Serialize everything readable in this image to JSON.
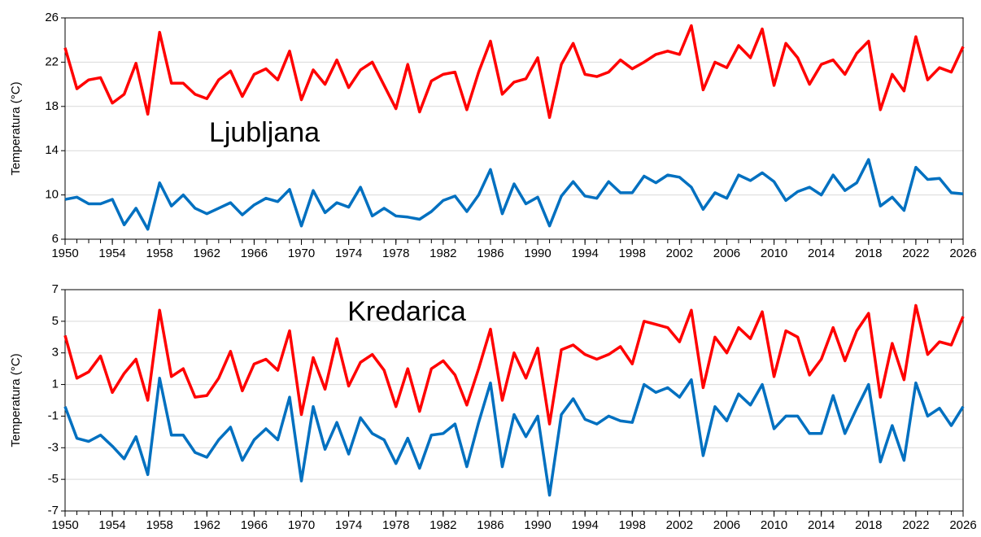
{
  "chart_data": [
    {
      "type": "line",
      "annotation": "Ljubljana",
      "y_label": "Temperatura (°C)",
      "x": [
        1950,
        1951,
        1952,
        1953,
        1954,
        1955,
        1956,
        1957,
        1958,
        1959,
        1960,
        1961,
        1962,
        1963,
        1964,
        1965,
        1966,
        1967,
        1968,
        1969,
        1970,
        1971,
        1972,
        1973,
        1974,
        1975,
        1976,
        1977,
        1978,
        1979,
        1980,
        1981,
        1982,
        1983,
        1984,
        1985,
        1986,
        1987,
        1988,
        1989,
        1990,
        1991,
        1992,
        1993,
        1994,
        1995,
        1996,
        1997,
        1998,
        1999,
        2000,
        2001,
        2002,
        2003,
        2004,
        2005,
        2006,
        2007,
        2008,
        2009,
        2010,
        2011,
        2012,
        2013,
        2014,
        2015,
        2016,
        2017,
        2018,
        2019,
        2020,
        2021,
        2022,
        2023,
        2024,
        2025,
        2026
      ],
      "xlim": [
        1950,
        2026
      ],
      "xticks": [
        1950,
        1954,
        1958,
        1962,
        1966,
        1970,
        1974,
        1978,
        1982,
        1986,
        1990,
        1994,
        1998,
        2002,
        2006,
        2010,
        2014,
        2018,
        2022,
        2026
      ],
      "ylim": [
        6,
        26
      ],
      "yticks": [
        6,
        10,
        14,
        18,
        22,
        26
      ],
      "grid": true,
      "series": [
        {
          "color": "#ff0000",
          "values": [
            23.3,
            19.6,
            20.4,
            20.6,
            18.3,
            19.1,
            21.9,
            17.3,
            24.7,
            20.1,
            20.1,
            19.1,
            18.7,
            20.4,
            21.2,
            18.9,
            20.9,
            21.4,
            20.4,
            23.0,
            18.6,
            21.3,
            20.0,
            22.2,
            19.7,
            21.3,
            22.0,
            19.9,
            17.8,
            21.8,
            17.5,
            20.3,
            20.9,
            21.1,
            17.7,
            21.1,
            23.9,
            19.1,
            20.2,
            20.5,
            22.4,
            17.0,
            21.8,
            23.7,
            20.9,
            20.7,
            21.1,
            22.2,
            21.4,
            22.0,
            22.7,
            23.0,
            22.7,
            25.3,
            19.5,
            22.0,
            21.5,
            23.5,
            22.4,
            25.0,
            19.9,
            23.7,
            22.4,
            20.0,
            21.8,
            22.2,
            20.9,
            22.8,
            23.9,
            17.7,
            20.9,
            19.4,
            24.3,
            20.4,
            21.5,
            21.1,
            23.4
          ]
        },
        {
          "color": "#0070c0",
          "values": [
            9.6,
            9.8,
            9.2,
            9.2,
            9.6,
            7.3,
            8.8,
            6.9,
            11.1,
            9.0,
            10.0,
            8.8,
            8.3,
            8.8,
            9.3,
            8.2,
            9.1,
            9.7,
            9.4,
            10.5,
            7.2,
            10.4,
            8.4,
            9.3,
            8.9,
            10.7,
            8.1,
            8.8,
            8.1,
            8.0,
            7.8,
            8.5,
            9.5,
            9.9,
            8.5,
            10.0,
            12.3,
            8.3,
            11.0,
            9.2,
            9.8,
            7.2,
            9.9,
            11.2,
            9.9,
            9.7,
            11.2,
            10.2,
            10.2,
            11.7,
            11.1,
            11.8,
            11.6,
            10.7,
            8.7,
            10.2,
            9.7,
            11.8,
            11.3,
            12.0,
            11.2,
            9.5,
            10.3,
            10.7,
            10.0,
            11.8,
            10.4,
            11.1,
            13.2,
            9.0,
            9.8,
            8.6,
            12.5,
            11.4,
            11.5,
            10.2,
            10.1
          ]
        }
      ]
    },
    {
      "type": "line",
      "annotation": "Kredarica",
      "y_label": "Temperatura (°C)",
      "x": [
        1950,
        1951,
        1952,
        1953,
        1954,
        1955,
        1956,
        1957,
        1958,
        1959,
        1960,
        1961,
        1962,
        1963,
        1964,
        1965,
        1966,
        1967,
        1968,
        1969,
        1970,
        1971,
        1972,
        1973,
        1974,
        1975,
        1976,
        1977,
        1978,
        1979,
        1980,
        1981,
        1982,
        1983,
        1984,
        1985,
        1986,
        1987,
        1988,
        1989,
        1990,
        1991,
        1992,
        1993,
        1994,
        1995,
        1996,
        1997,
        1998,
        1999,
        2000,
        2001,
        2002,
        2003,
        2004,
        2005,
        2006,
        2007,
        2008,
        2009,
        2010,
        2011,
        2012,
        2013,
        2014,
        2015,
        2016,
        2017,
        2018,
        2019,
        2020,
        2021,
        2022,
        2023,
        2024,
        2025,
        2026
      ],
      "xlim": [
        1950,
        2026
      ],
      "xticks": [
        1950,
        1954,
        1958,
        1962,
        1966,
        1970,
        1974,
        1978,
        1982,
        1986,
        1990,
        1994,
        1998,
        2002,
        2006,
        2010,
        2014,
        2018,
        2022,
        2026
      ],
      "ylim": [
        -7,
        7
      ],
      "yticks": [
        -7,
        -5,
        -3,
        -1,
        1,
        3,
        5,
        7
      ],
      "grid": true,
      "series": [
        {
          "color": "#ff0000",
          "values": [
            4.1,
            1.4,
            1.8,
            2.8,
            0.5,
            1.7,
            2.6,
            0.0,
            5.7,
            1.5,
            2.0,
            0.2,
            0.3,
            1.4,
            3.1,
            0.6,
            2.3,
            2.6,
            1.9,
            4.4,
            -0.9,
            2.7,
            0.7,
            3.9,
            0.9,
            2.4,
            2.9,
            1.9,
            -0.4,
            2.0,
            -0.7,
            2.0,
            2.5,
            1.6,
            -0.3,
            2.0,
            4.5,
            0.0,
            3.0,
            1.4,
            3.3,
            -1.5,
            3.2,
            3.5,
            2.9,
            2.6,
            2.9,
            3.4,
            2.3,
            5.0,
            4.8,
            4.6,
            3.7,
            5.7,
            0.8,
            4.0,
            3.0,
            4.6,
            3.9,
            5.6,
            1.5,
            4.4,
            4.0,
            1.6,
            2.6,
            4.6,
            2.5,
            4.4,
            5.5,
            0.2,
            3.6,
            1.3,
            6.0,
            2.9,
            3.7,
            3.5,
            5.3
          ]
        },
        {
          "color": "#0070c0",
          "values": [
            -0.4,
            -2.4,
            -2.6,
            -2.2,
            -2.9,
            -3.7,
            -2.3,
            -4.7,
            1.4,
            -2.2,
            -2.2,
            -3.3,
            -3.6,
            -2.5,
            -1.7,
            -3.8,
            -2.5,
            -1.8,
            -2.5,
            0.2,
            -5.1,
            -0.4,
            -3.1,
            -1.4,
            -3.4,
            -1.1,
            -2.1,
            -2.5,
            -4.0,
            -2.4,
            -4.3,
            -2.2,
            -2.1,
            -1.5,
            -4.2,
            -1.4,
            1.1,
            -4.2,
            -0.9,
            -2.3,
            -1.0,
            -6.0,
            -0.9,
            0.1,
            -1.2,
            -1.5,
            -1.0,
            -1.3,
            -1.4,
            1.0,
            0.5,
            0.8,
            0.2,
            1.3,
            -3.5,
            -0.4,
            -1.3,
            0.4,
            -0.3,
            1.0,
            -1.8,
            -1.0,
            -1.0,
            -2.1,
            -2.1,
            0.3,
            -2.1,
            -0.5,
            1.0,
            -3.9,
            -1.6,
            -3.8,
            1.1,
            -1.0,
            -0.5,
            -1.6,
            -0.4
          ]
        }
      ]
    }
  ]
}
